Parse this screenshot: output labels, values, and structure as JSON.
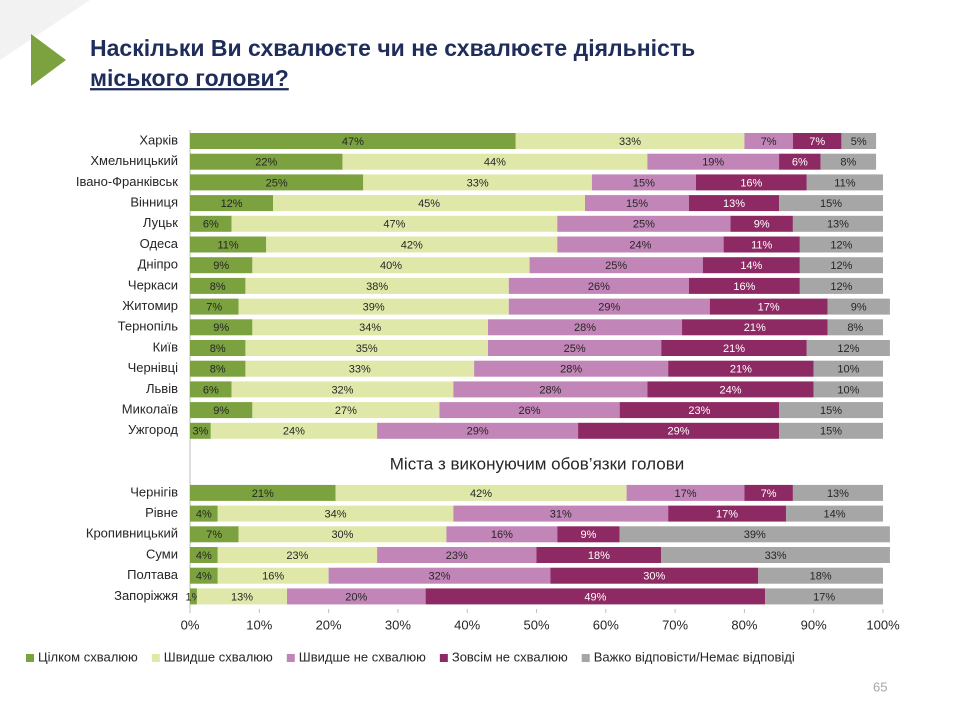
{
  "title_lines": [
    "Наскільки Ви схвалюєте чи не схвалюєте діяльність",
    "міського голови?"
  ],
  "page_number": "65",
  "chart_data": {
    "type": "stacked-barh",
    "section_title": "Міста з виконуючим обов’язки голови",
    "categories": [
      "Харків",
      "Хмельницький",
      "Івано-Франківськ",
      "Вінниця",
      "Луцьк",
      "Одеса",
      "Дніпро",
      "Черкаси",
      "Житомир",
      "Тернопіль",
      "Київ",
      "Чернівці",
      "Львів",
      "Миколаїв",
      "Ужгород",
      null,
      null,
      "Чернігів",
      "Рівне",
      "Кропивницький",
      "Суми",
      "Полтава",
      "Запоріжжя"
    ],
    "series": [
      {
        "name": "Цілком схвалюю",
        "color": "#7ba23f",
        "values": [
          47,
          22,
          25,
          12,
          6,
          11,
          9,
          8,
          7,
          9,
          8,
          8,
          6,
          9,
          3,
          null,
          null,
          21,
          4,
          7,
          4,
          4,
          1
        ],
        "value_labels": [
          "47%",
          "22%",
          "25%",
          "12%",
          "6%",
          "11%",
          "9%",
          "8%",
          "7%",
          "9%",
          "8%",
          "8%",
          "6%",
          "9%",
          "3%",
          null,
          null,
          "21%",
          "4%",
          "7%",
          "4%",
          "4%",
          "1%"
        ]
      },
      {
        "name": "Швидше схвалюю",
        "color": "#dfe8a9",
        "values": [
          33,
          44,
          33,
          45,
          47,
          42,
          40,
          38,
          39,
          34,
          35,
          33,
          32,
          27,
          24,
          null,
          null,
          42,
          34,
          30,
          23,
          16,
          13
        ],
        "value_labels": [
          "33%",
          "44%",
          "33%",
          "45%",
          "47%",
          "42%",
          "40%",
          "38%",
          "39%",
          "34%",
          "35%",
          "33%",
          "32%",
          "27%",
          "24%",
          null,
          null,
          "42%",
          "34%",
          "30%",
          "23%",
          "16%",
          "13%"
        ]
      },
      {
        "name": "Швидше не схвалюю",
        "color": "#c285b8",
        "values": [
          7,
          19,
          15,
          15,
          25,
          24,
          25,
          26,
          29,
          28,
          25,
          28,
          28,
          26,
          29,
          null,
          null,
          17,
          31,
          16,
          23,
          32,
          20
        ],
        "value_labels": [
          "7%",
          "19%",
          "15%",
          "15%",
          "25%",
          "24%",
          "25%",
          "26%",
          "29%",
          "28%",
          "25%",
          "28%",
          "28%",
          "26%",
          "29%",
          null,
          null,
          "17%",
          "31%",
          "16%",
          "23%",
          "32%",
          "20%"
        ]
      },
      {
        "name": "Зовсім не схвалюю",
        "color": "#8e2a63",
        "values": [
          7,
          6,
          16,
          13,
          9,
          11,
          14,
          16,
          17,
          21,
          21,
          21,
          24,
          23,
          29,
          null,
          null,
          7,
          17,
          9,
          18,
          30,
          49
        ],
        "value_labels": [
          "7%",
          "6%",
          "16%",
          "13%",
          "9%",
          "11%",
          "14%",
          "16%",
          "17%",
          "21%",
          "21%",
          "21%",
          "24%",
          "23%",
          "29%",
          null,
          null,
          "7%",
          "17%",
          "9%",
          "18%",
          "30%",
          "49%"
        ]
      },
      {
        "name": "Важко відповісти/Немає відповіді",
        "color": "#a6a6a6",
        "values": [
          5,
          8,
          11,
          15,
          13,
          12,
          12,
          12,
          9,
          8,
          12,
          10,
          10,
          15,
          15,
          null,
          null,
          13,
          14,
          39,
          33,
          18,
          17
        ],
        "value_labels": [
          "5%",
          "8%",
          "11%",
          "15%",
          "13%",
          "12%",
          "12%",
          "12%",
          "9%",
          "8%",
          "12%",
          "10%",
          "10%",
          "15%",
          "15%",
          null,
          null,
          "13%",
          "14%",
          "39%",
          "33%",
          "18%",
          "17%"
        ]
      }
    ],
    "xlim": [
      0,
      100
    ],
    "xticks": [
      {
        "value": 0,
        "label": "0%"
      },
      {
        "value": 10,
        "label": "10%"
      },
      {
        "value": 20,
        "label": "20%"
      },
      {
        "value": 30,
        "label": "30%"
      },
      {
        "value": 40,
        "label": "40%"
      },
      {
        "value": 50,
        "label": "50%"
      },
      {
        "value": 60,
        "label": "60%"
      },
      {
        "value": 70,
        "label": "70%"
      },
      {
        "value": 80,
        "label": "80%"
      },
      {
        "value": 90,
        "label": "90%"
      },
      {
        "value": 100,
        "label": "100%"
      }
    ],
    "legend": "bottom"
  }
}
